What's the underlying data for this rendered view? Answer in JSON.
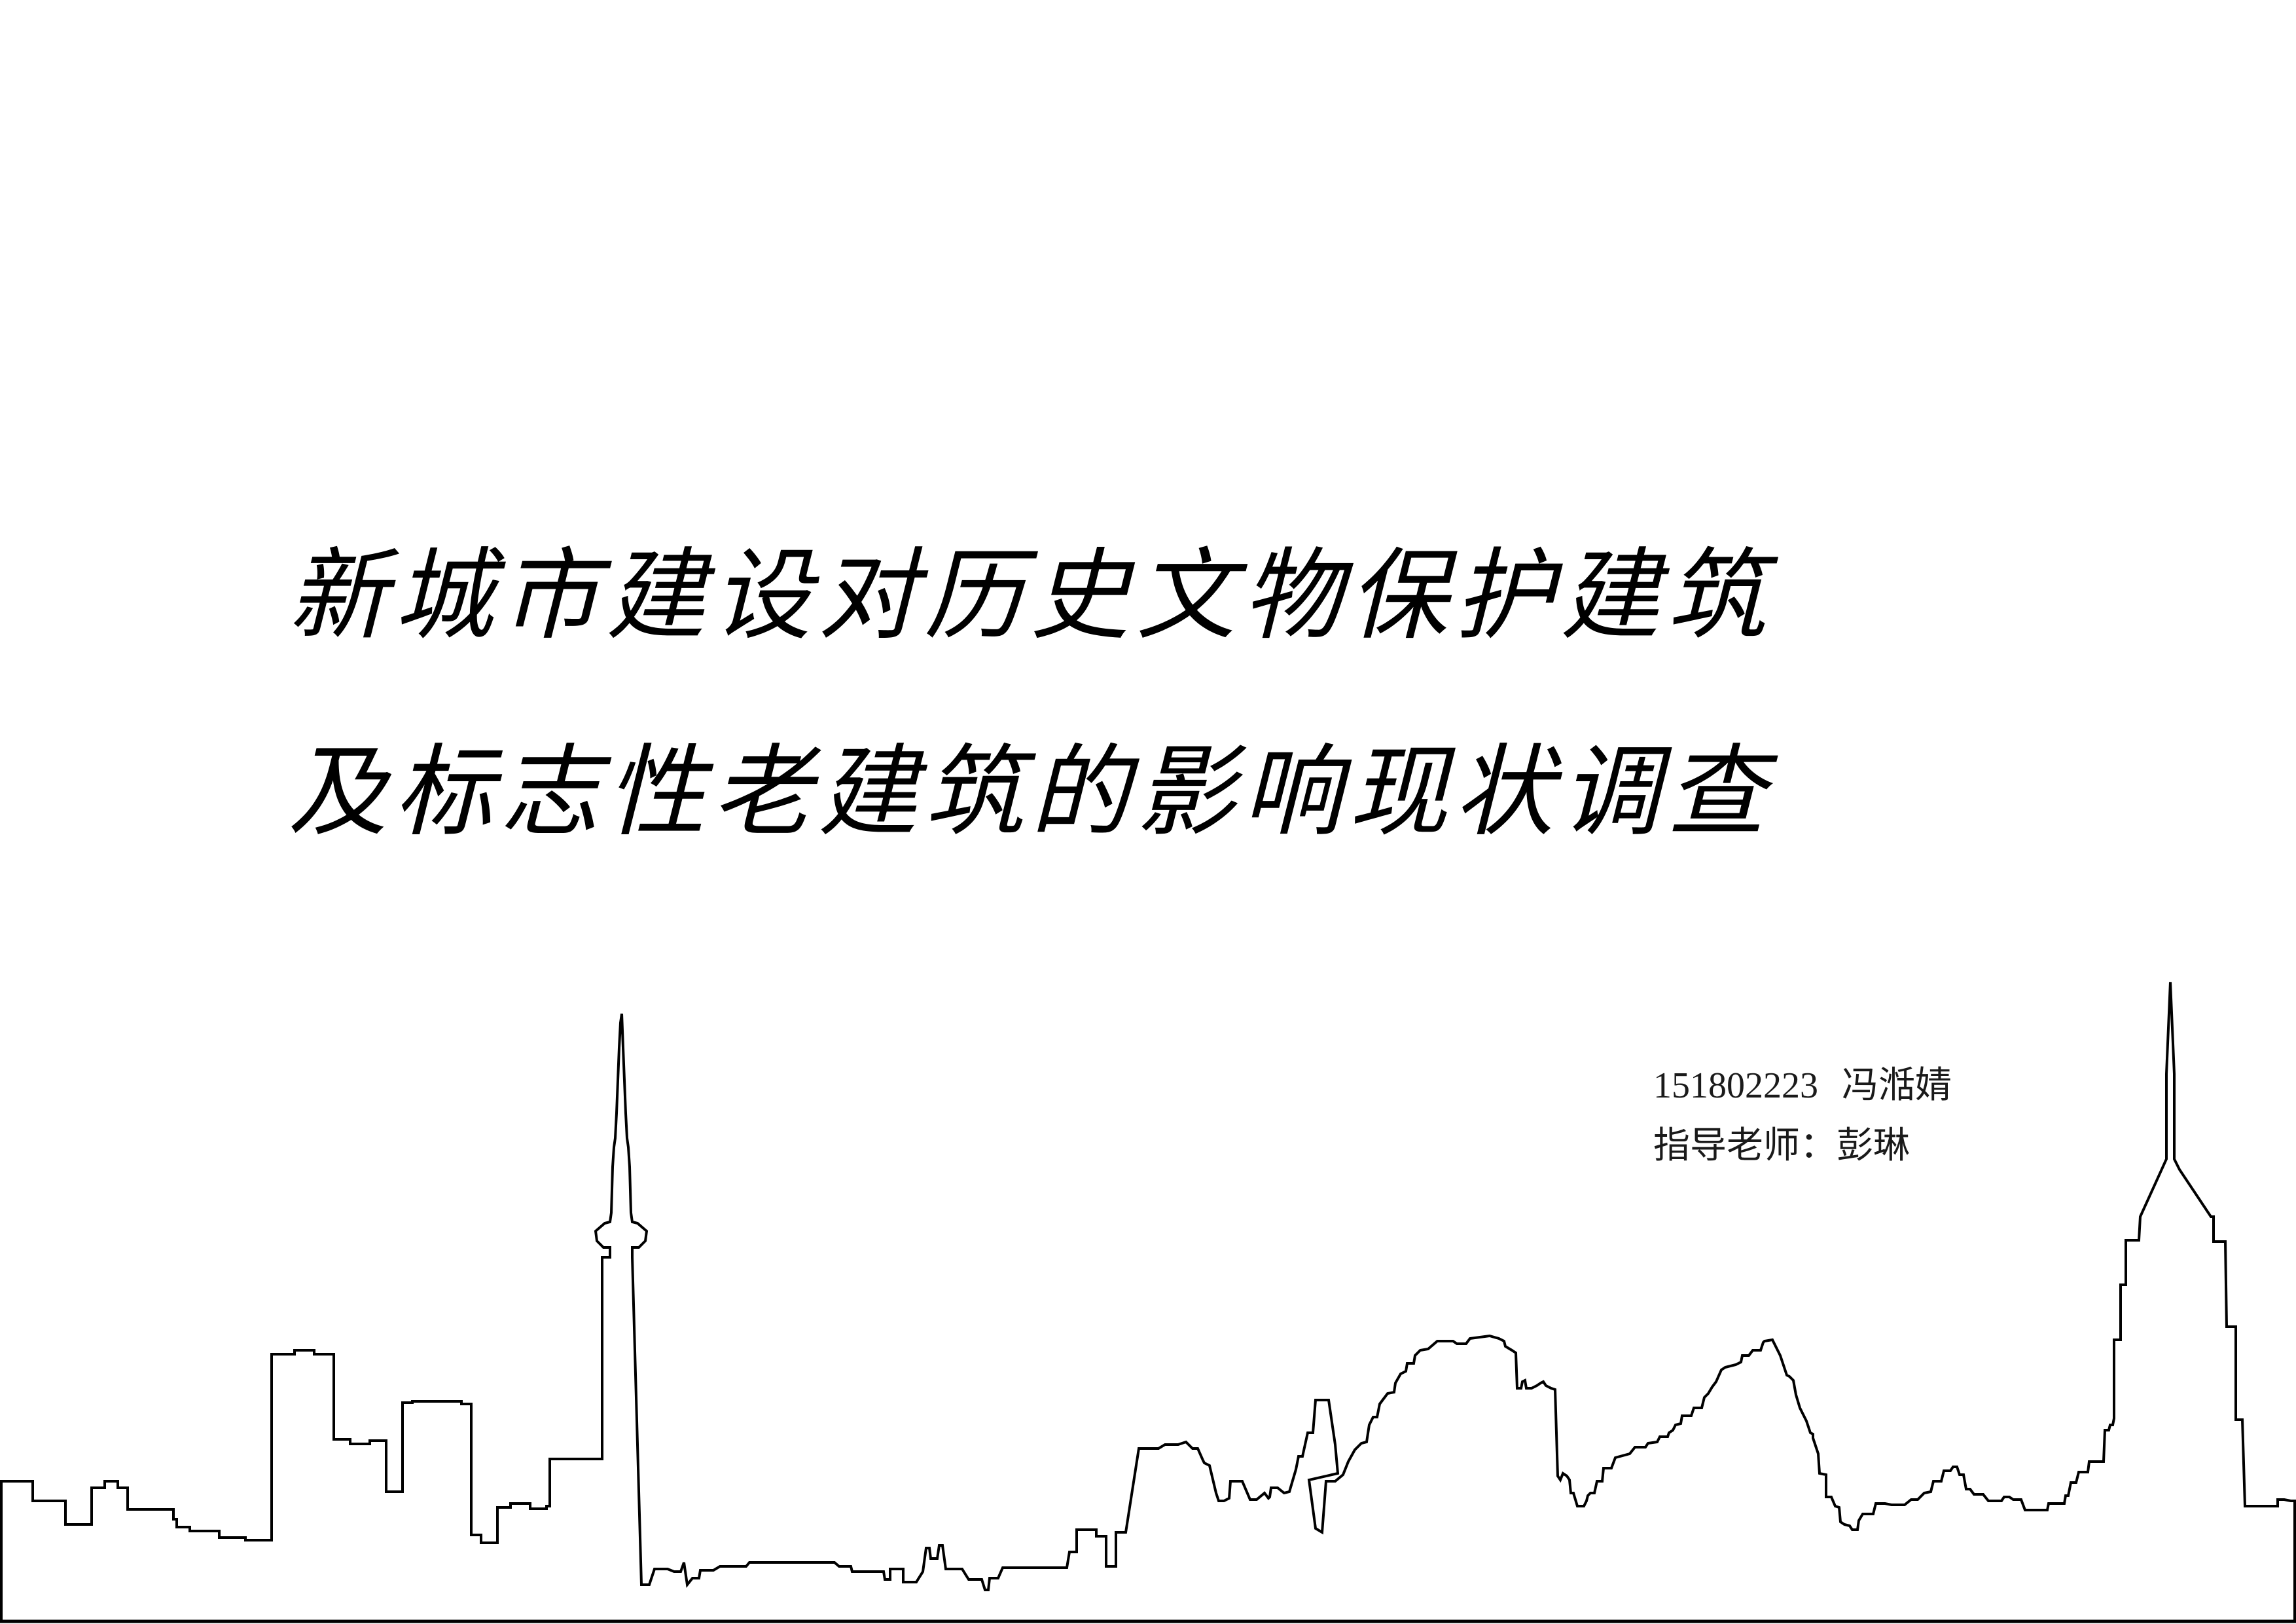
{
  "title": {
    "line1": "新城市建设对历史文物保护建筑",
    "line2": "及标志性老建筑的影响现状调查"
  },
  "author": {
    "student_id": "151802223",
    "name": "冯湉婧",
    "advisor_label": "指导老师：",
    "advisor_name": "彭琳"
  },
  "colors": {
    "background": "#ffffff",
    "ink": "#000000"
  }
}
